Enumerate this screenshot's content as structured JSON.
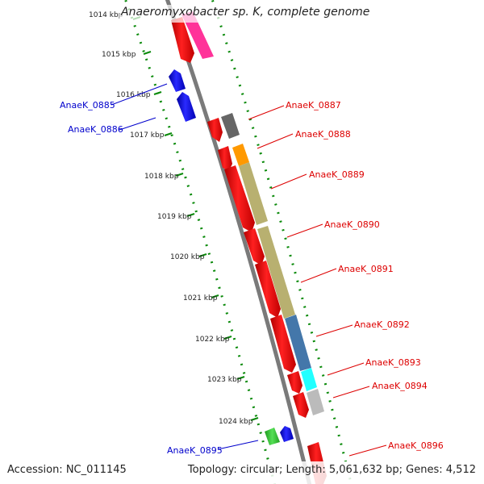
{
  "title": "Anaeromyxobacter sp. K, complete genome",
  "footer": {
    "accession": "Accession: NC_011145",
    "stats": "Topology: circular; Length: 5,061,632 bp; Genes: 4,512"
  },
  "ruler": {
    "ticks": [
      "1014 kbp",
      "1015 kbp",
      "1016 kbp",
      "1017 kbp",
      "1018 kbp",
      "1019 kbp",
      "1020 kbp",
      "1021 kbp",
      "1022 kbp",
      "1023 kbp",
      "1024 kbp"
    ]
  },
  "genes_reverse": [
    {
      "label": "AnaeK_0885",
      "color": "#0000ee"
    },
    {
      "label": "AnaeK_0886",
      "color": "#0000ee"
    },
    {
      "label": "AnaeK_0895",
      "color": "#0000ee"
    }
  ],
  "genes_forward": [
    {
      "label": "AnaeK_0887",
      "color": "#ff0000"
    },
    {
      "label": "AnaeK_0888",
      "color": "#ff0000"
    },
    {
      "label": "AnaeK_0889",
      "color": "#ff0000"
    },
    {
      "label": "AnaeK_0890",
      "color": "#ff0000"
    },
    {
      "label": "AnaeK_0891",
      "color": "#ff0000"
    },
    {
      "label": "AnaeK_0892",
      "color": "#ff0000"
    },
    {
      "label": "AnaeK_0893",
      "color": "#ff0000"
    },
    {
      "label": "AnaeK_0894",
      "color": "#ff0000"
    },
    {
      "label": "AnaeK_0896",
      "color": "#ff0000"
    }
  ],
  "cog_colors": [
    "#ff3399",
    "#666666",
    "#ff9900",
    "#b8b070",
    "#4477aa",
    "#22ffff",
    "#bbbbbb",
    "#33cc33"
  ]
}
